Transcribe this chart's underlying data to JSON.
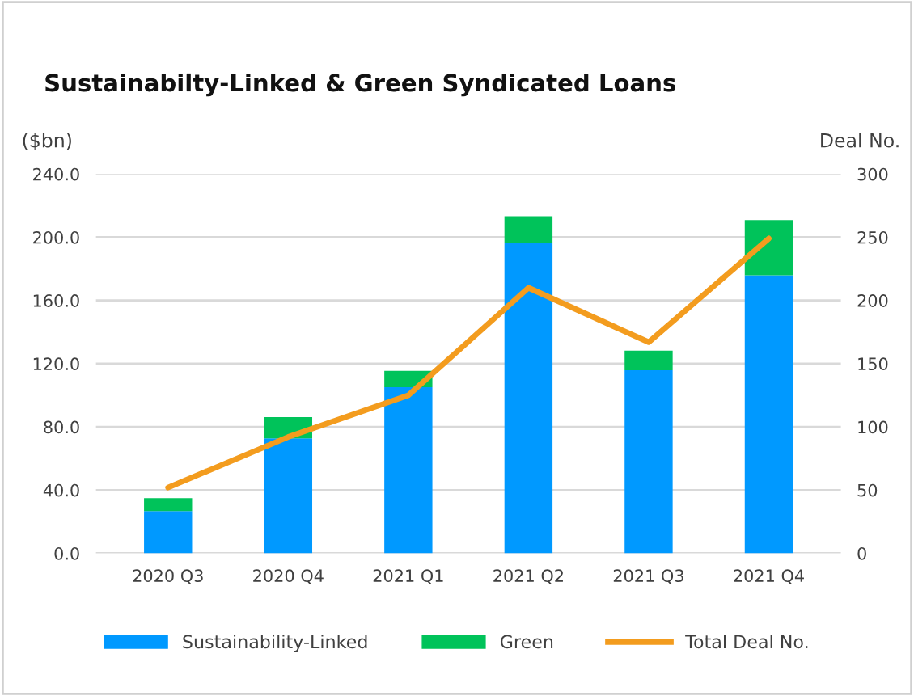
{
  "chart_data": {
    "type": "bar",
    "title": "Sustainabilty-Linked & Green Syndicated Loans",
    "ylabel": "($bn)",
    "y2label": "Deal No.",
    "categories": [
      "2020 Q3",
      "2020 Q4",
      "2021 Q1",
      "2021 Q2",
      "2021 Q3",
      "2021 Q4"
    ],
    "stacked": true,
    "series": [
      {
        "name": "Sustainability-Linked",
        "color": "#0099ff",
        "values": [
          26.7,
          72.8,
          105.1,
          196.4,
          115.9,
          175.9
        ]
      },
      {
        "name": "Green",
        "color": "#00c35a",
        "values": [
          8.2,
          13.4,
          10.3,
          16.9,
          12.3,
          34.9
        ]
      },
      {
        "name": "Total Deal No.",
        "type": "line",
        "axis": "y2",
        "color": "#f39c1e",
        "values": [
          52,
          92,
          125,
          210,
          167,
          249
        ]
      }
    ],
    "ylim": [
      0,
      240
    ],
    "yticks": [
      {
        "value": 0,
        "label": "0.0"
      },
      {
        "value": 40,
        "label": "40.0"
      },
      {
        "value": 80,
        "label": "80.0"
      },
      {
        "value": 120,
        "label": "120.0"
      },
      {
        "value": 160,
        "label": "160.0"
      },
      {
        "value": 200,
        "label": "200.0"
      },
      {
        "value": 240,
        "label": "240.0"
      }
    ],
    "y2lim": [
      0,
      300
    ],
    "y2ticks": [
      0,
      50,
      100,
      150,
      200,
      250,
      300
    ],
    "grid": "y",
    "legend": "bottom",
    "marker": "none",
    "line_style": "solid"
  }
}
